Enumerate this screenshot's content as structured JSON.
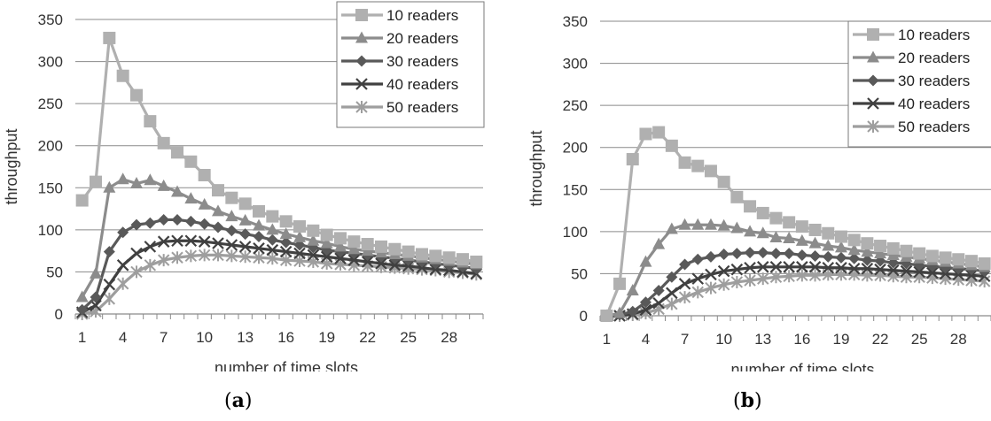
{
  "chart_data": [
    {
      "type": "line",
      "panel_label": "a",
      "xlabel": "number of time slots",
      "ylabel": "throughput",
      "x": [
        1,
        2,
        3,
        4,
        5,
        6,
        7,
        8,
        9,
        10,
        11,
        12,
        13,
        14,
        15,
        16,
        17,
        18,
        19,
        20,
        21,
        22,
        23,
        24,
        25,
        26,
        27,
        28,
        29,
        30
      ],
      "xticks": [
        "1",
        "4",
        "7",
        "10",
        "13",
        "16",
        "19",
        "22",
        "25",
        "28"
      ],
      "yticks": [
        "0",
        "50",
        "100",
        "150",
        "200",
        "250",
        "300",
        "350"
      ],
      "ylim": [
        0,
        350
      ],
      "grid": "horizontal",
      "legend_position": "top-right",
      "series": [
        {
          "name": "10 readers",
          "color": "#b0b0b0",
          "marker": "square",
          "values": [
            135,
            157,
            328,
            283,
            260,
            229,
            203,
            192,
            181,
            165,
            147,
            138,
            131,
            122,
            116,
            110,
            104,
            99,
            94,
            90,
            86,
            83,
            80,
            77,
            74,
            71,
            69,
            67,
            65,
            62
          ]
        },
        {
          "name": "20 readers",
          "color": "#8c8c8c",
          "marker": "triangle",
          "values": [
            20,
            48,
            150,
            160,
            155,
            159,
            152,
            145,
            137,
            130,
            122,
            116,
            111,
            105,
            100,
            95,
            91,
            87,
            84,
            80,
            77,
            75,
            73,
            71,
            69,
            67,
            65,
            63,
            61,
            59
          ]
        },
        {
          "name": "30 readers",
          "color": "#595959",
          "marker": "diamond",
          "values": [
            5,
            20,
            74,
            97,
            106,
            108,
            112,
            112,
            110,
            107,
            103,
            99,
            95,
            92,
            88,
            85,
            82,
            79,
            76,
            74,
            72,
            70,
            68,
            66,
            64,
            62,
            60,
            58,
            56,
            54
          ]
        },
        {
          "name": "40 readers",
          "color": "#404040",
          "marker": "x",
          "values": [
            2,
            10,
            35,
            58,
            72,
            80,
            86,
            87,
            87,
            86,
            84,
            82,
            80,
            78,
            76,
            74,
            72,
            70,
            68,
            66,
            64,
            62,
            60,
            58,
            57,
            55,
            53,
            52,
            50,
            48
          ]
        },
        {
          "name": "50 readers",
          "color": "#9e9e9e",
          "marker": "asterisk",
          "values": [
            0,
            3,
            18,
            36,
            50,
            58,
            64,
            67,
            69,
            70,
            70,
            69,
            68,
            67,
            66,
            64,
            63,
            62,
            60,
            59,
            58,
            57,
            56,
            55,
            54,
            53,
            52,
            50,
            49,
            47
          ]
        }
      ]
    },
    {
      "type": "line",
      "panel_label": "b",
      "xlabel": "number of time slots",
      "ylabel": "throughput",
      "x": [
        1,
        2,
        3,
        4,
        5,
        6,
        7,
        8,
        9,
        10,
        11,
        12,
        13,
        14,
        15,
        16,
        17,
        18,
        19,
        20,
        21,
        22,
        23,
        24,
        25,
        26,
        27,
        28,
        29,
        30
      ],
      "xticks": [
        "1",
        "4",
        "7",
        "10",
        "13",
        "16",
        "19",
        "22",
        "25",
        "28"
      ],
      "yticks": [
        "0",
        "50",
        "100",
        "150",
        "200",
        "250",
        "300",
        "350"
      ],
      "ylim": [
        0,
        350
      ],
      "grid": "horizontal",
      "legend_position": "top-right",
      "series": [
        {
          "name": "10 readers",
          "color": "#b0b0b0",
          "marker": "square",
          "values": [
            0,
            38,
            186,
            216,
            218,
            202,
            182,
            178,
            172,
            159,
            141,
            130,
            122,
            116,
            111,
            106,
            102,
            98,
            94,
            90,
            86,
            83,
            80,
            77,
            74,
            71,
            69,
            67,
            65,
            62
          ]
        },
        {
          "name": "20 readers",
          "color": "#8c8c8c",
          "marker": "triangle",
          "values": [
            0,
            3,
            30,
            64,
            85,
            103,
            108,
            108,
            108,
            107,
            104,
            100,
            98,
            93,
            92,
            89,
            86,
            83,
            81,
            78,
            76,
            74,
            72,
            70,
            68,
            66,
            64,
            62,
            60,
            58
          ]
        },
        {
          "name": "30 readers",
          "color": "#595959",
          "marker": "diamond",
          "values": [
            0,
            1,
            5,
            16,
            30,
            46,
            61,
            67,
            70,
            73,
            74,
            75,
            75,
            74,
            74,
            72,
            71,
            70,
            69,
            68,
            66,
            65,
            63,
            62,
            60,
            59,
            57,
            56,
            55,
            53
          ]
        },
        {
          "name": "40 readers",
          "color": "#404040",
          "marker": "x",
          "values": [
            0,
            0,
            2,
            7,
            15,
            27,
            38,
            44,
            49,
            53,
            55,
            57,
            58,
            58,
            58,
            58,
            58,
            57,
            57,
            56,
            56,
            55,
            54,
            53,
            52,
            51,
            50,
            49,
            48,
            47
          ]
        },
        {
          "name": "50 readers",
          "color": "#9e9e9e",
          "marker": "asterisk",
          "values": [
            0,
            0,
            1,
            3,
            8,
            14,
            22,
            28,
            33,
            37,
            40,
            42,
            44,
            46,
            47,
            48,
            48,
            49,
            49,
            49,
            48,
            48,
            47,
            46,
            46,
            45,
            44,
            43,
            42,
            41
          ]
        }
      ]
    }
  ]
}
